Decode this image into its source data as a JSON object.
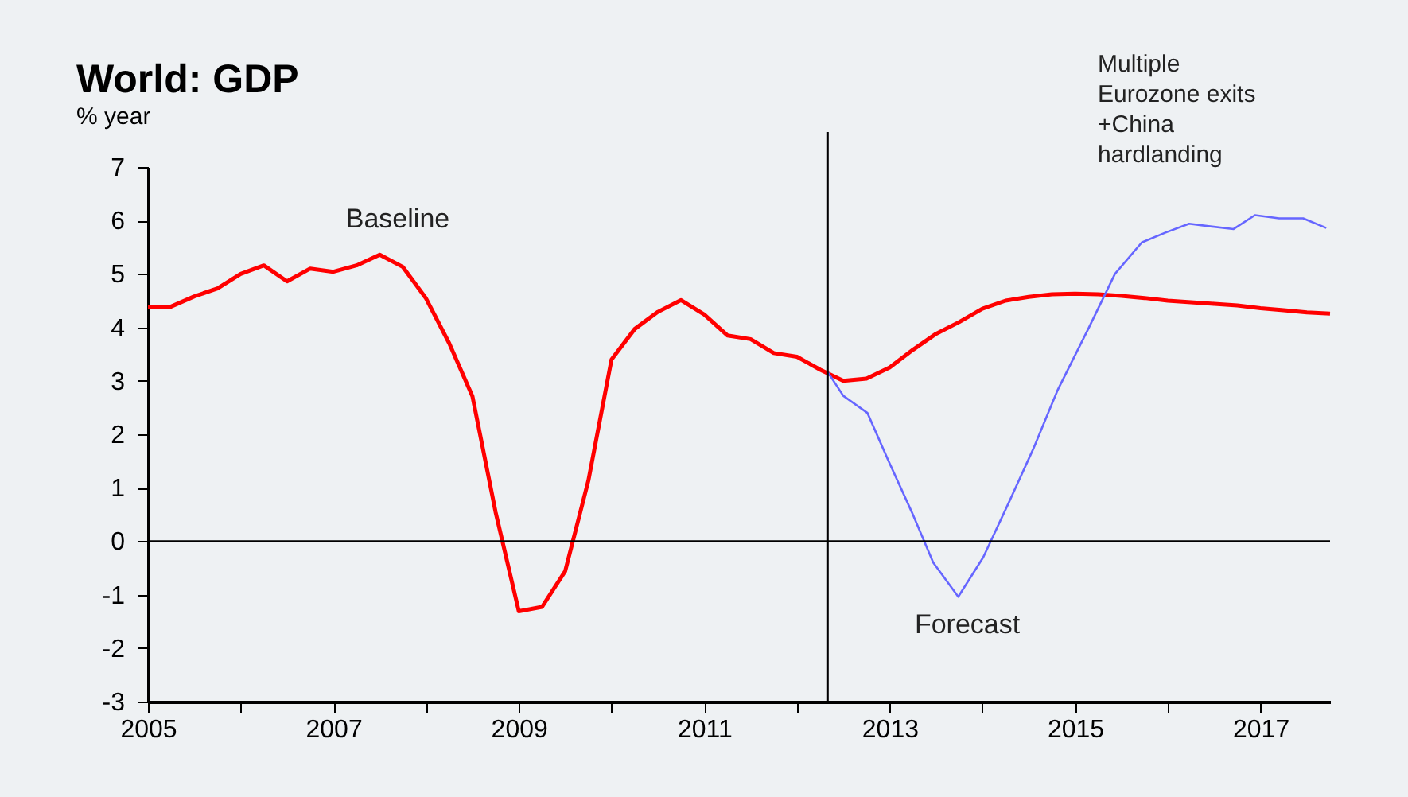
{
  "chart_data": {
    "type": "line",
    "title": "World: GDP",
    "subtitle": "% year",
    "xlim": [
      2005,
      2017.75
    ],
    "xticks": [
      2005,
      {
        "value": 2006,
        "label": null
      },
      2007,
      {
        "value": 2008,
        "label": null
      },
      2009,
      {
        "value": 2010,
        "label": null
      },
      2011,
      {
        "value": 2012,
        "label": null
      },
      2013,
      {
        "value": 2014,
        "label": null
      },
      2015,
      {
        "value": 2016,
        "label": null
      },
      2017
    ],
    "ylim": [
      -3,
      7
    ],
    "yticks": [
      -3,
      -2,
      -1,
      0,
      1,
      2,
      3,
      4,
      5,
      6,
      7
    ],
    "marker": "none",
    "line_style": "solid",
    "series": [
      {
        "color": "#ff0000",
        "x": [
          2005,
          2005.25,
          2005.5,
          2005.75,
          2006,
          2006.25,
          2006.5,
          2006.75,
          2007,
          2007.25,
          2007.5,
          2007.75,
          2008,
          2008.25,
          2008.5,
          2008.75,
          2009,
          2009.25,
          2009.5,
          2009.75,
          2010,
          2010.25,
          2010.5,
          2010.75,
          2011,
          2011.25,
          2011.5,
          2011.75,
          2012,
          2012.25,
          2012.5,
          2012.75,
          2013,
          2013.25,
          2013.5,
          2013.75,
          2014,
          2014.25,
          2014.5,
          2014.75,
          2015,
          2015.25,
          2015.5,
          2015.75,
          2016,
          2016.25,
          2016.5,
          2016.75,
          2017,
          2017.25,
          2017.5,
          2017.75
        ],
        "values": [
          4.39,
          4.39,
          4.58,
          4.73,
          5.0,
          5.16,
          4.86,
          5.1,
          5.04,
          5.16,
          5.36,
          5.13,
          4.54,
          3.7,
          2.71,
          0.54,
          -1.31,
          -1.23,
          -0.56,
          1.13,
          3.4,
          3.97,
          4.29,
          4.51,
          4.24,
          3.85,
          3.78,
          3.52,
          3.45,
          3.21,
          3.0,
          3.04,
          3.25,
          3.58,
          3.88,
          4.1,
          4.35,
          4.5,
          4.57,
          4.62,
          4.63,
          4.62,
          4.59,
          4.55,
          4.5,
          4.47,
          4.44,
          4.41,
          4.36,
          4.32,
          4.28,
          4.26
        ]
      },
      {
        "color": "#6666ff",
        "x": [
          2012.33,
          2012.5,
          2012.76,
          2012.98,
          2013.24,
          2013.47,
          2013.74,
          2014.01,
          2014.29,
          2014.55,
          2014.81,
          2015.15,
          2015.43,
          2015.72,
          2015.97,
          2016.23,
          2016.46,
          2016.71,
          2016.94,
          2017.2,
          2017.46,
          2017.71
        ],
        "values": [
          3.17,
          2.72,
          2.4,
          1.53,
          0.54,
          -0.4,
          -1.04,
          -0.3,
          0.74,
          1.73,
          2.82,
          4.0,
          5.0,
          5.59,
          5.77,
          5.94,
          5.89,
          5.84,
          6.1,
          6.04,
          6.04,
          5.86
        ]
      }
    ],
    "ref_lines": [
      {
        "axis": "y",
        "value": 0,
        "color": "#000000"
      },
      {
        "axis": "x",
        "value": 2012.33,
        "color": "#000000"
      }
    ],
    "annotations": [
      "Baseline",
      "Forecast",
      "Multiple\nEurozone exits\n+China\nhardlanding"
    ]
  }
}
